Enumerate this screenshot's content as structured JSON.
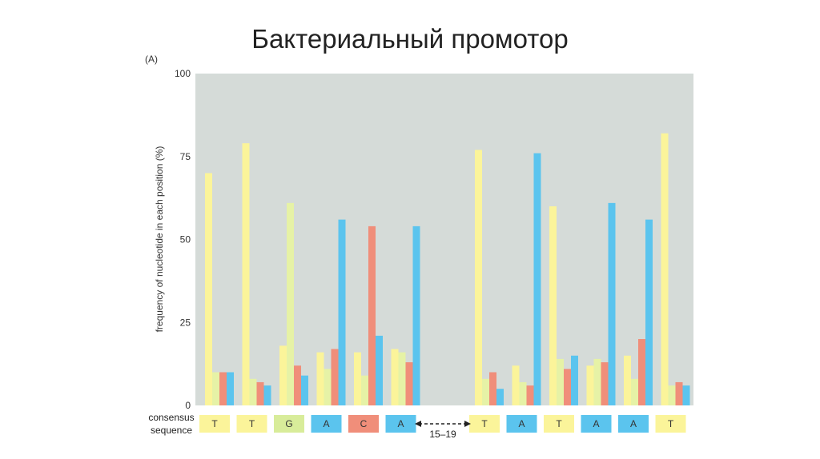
{
  "slide": {
    "title": "Бактериальный промотор"
  },
  "chart_data": {
    "type": "bar",
    "panel_label": "(A)",
    "title": "",
    "ylabel": "frequency of nucleotide in each position (%)",
    "ylim": [
      0,
      100
    ],
    "yticks": [
      0,
      25,
      50,
      75,
      100
    ],
    "grid": false,
    "series": [
      {
        "name": "T",
        "color": "#fbf49a",
        "values": [
          70,
          79,
          18,
          16,
          16,
          17,
          77,
          12,
          60,
          12,
          15,
          82
        ]
      },
      {
        "name": "G",
        "color": "#e6f2a6",
        "values": [
          10,
          8,
          61,
          11,
          9,
          16,
          8,
          7,
          14,
          14,
          8,
          6
        ]
      },
      {
        "name": "C",
        "color": "#f08e7a",
        "values": [
          10,
          7,
          12,
          17,
          54,
          13,
          10,
          6,
          11,
          13,
          20,
          7
        ]
      },
      {
        "name": "A",
        "color": "#5bc4ee",
        "values": [
          10,
          6,
          9,
          56,
          21,
          54,
          5,
          76,
          15,
          61,
          56,
          6
        ]
      }
    ],
    "consensus_label": [
      "consensus",
      "sequence"
    ],
    "consensus": [
      {
        "letter": "T",
        "color": "#fbf49a"
      },
      {
        "letter": "T",
        "color": "#fbf49a"
      },
      {
        "letter": "G",
        "color": "#d8ec9a"
      },
      {
        "letter": "A",
        "color": "#5bc4ee"
      },
      {
        "letter": "C",
        "color": "#f08e7a"
      },
      {
        "letter": "A",
        "color": "#5bc4ee"
      },
      {
        "letter": "T",
        "color": "#fbf49a"
      },
      {
        "letter": "A",
        "color": "#5bc4ee"
      },
      {
        "letter": "T",
        "color": "#fbf49a"
      },
      {
        "letter": "A",
        "color": "#5bc4ee"
      },
      {
        "letter": "A",
        "color": "#5bc4ee"
      },
      {
        "letter": "T",
        "color": "#fbf49a"
      }
    ],
    "spacer_label": "15–19",
    "plot_background": "#d5dbd8"
  }
}
